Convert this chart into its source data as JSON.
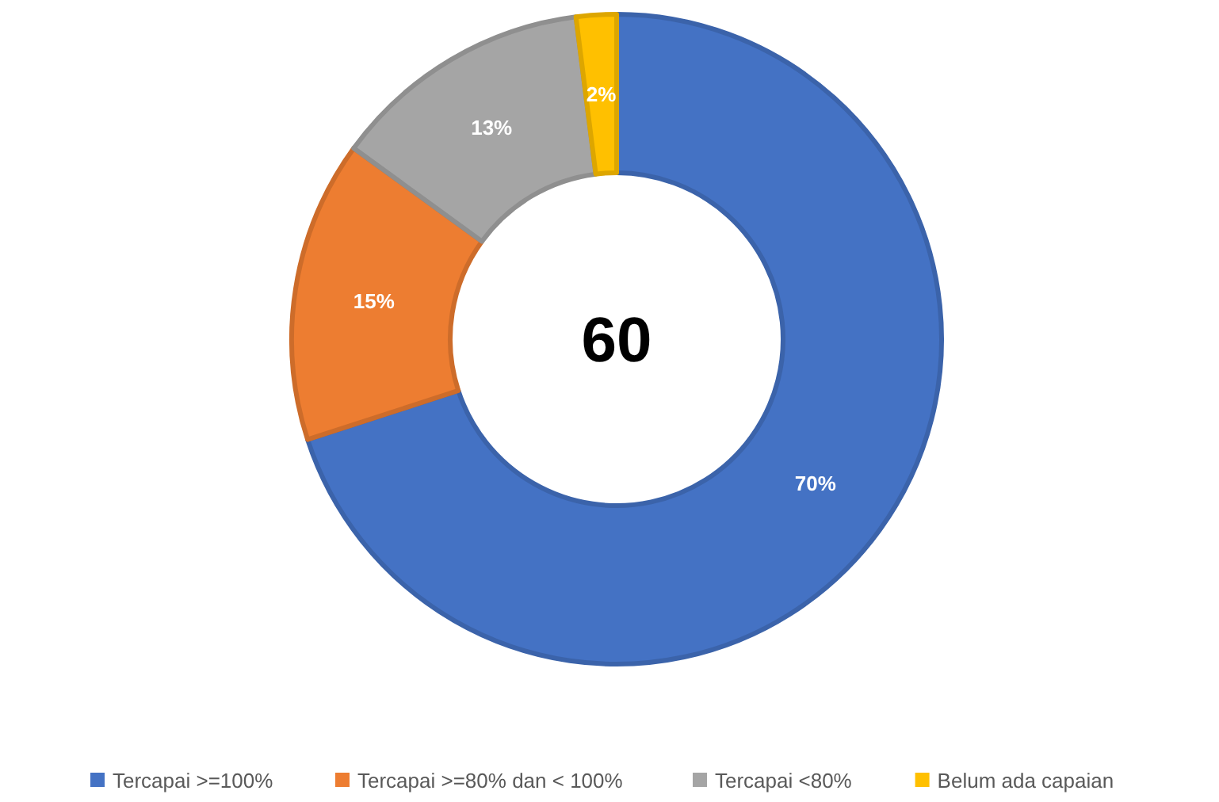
{
  "chart_data": {
    "type": "donut",
    "categories": [
      "Tercapai >=100%",
      "Tercapai >=80% dan < 100%",
      "Tercapai <80%",
      "Belum ada capaian"
    ],
    "values": [
      70,
      15,
      13,
      2
    ],
    "colors": [
      "#4472c4",
      "#ed7d31",
      "#a5a5a5",
      "#ffc000"
    ],
    "value_labels": [
      "70%",
      "15%",
      "13%",
      "2%"
    ],
    "annotations": [
      "60"
    ],
    "legend": "bottom"
  }
}
